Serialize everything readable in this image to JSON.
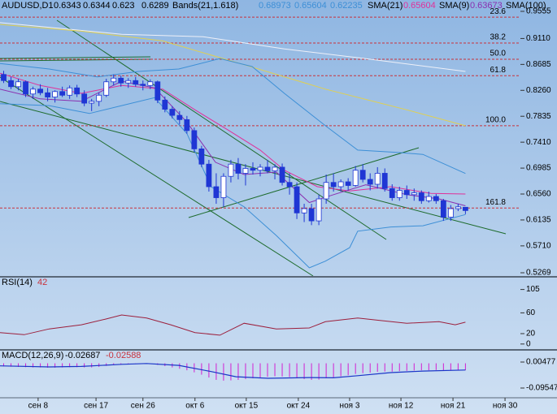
{
  "chart_data": [
    {
      "type": "candlestick",
      "title": "AUDUSD,D1",
      "x": [
        0.5,
        1.5,
        2.5,
        3.5,
        4.5,
        5.5,
        6.5,
        7.5,
        8.5,
        9.5,
        10.5,
        11.5,
        12.5,
        13.5,
        14.5,
        15.5,
        16.5,
        17.5,
        18.5,
        19.5,
        20.5,
        21.5,
        22.5,
        23.5,
        24.5,
        25.5,
        26.5,
        27.5,
        28.5,
        29.5,
        30.5,
        31.5,
        32.5,
        33.5,
        34.5,
        35.5,
        36.5,
        37.5,
        38.5,
        39.5,
        40.5,
        41.5,
        42.5,
        43.5,
        44.5,
        45.5,
        46.5,
        47.5,
        48.5,
        49.5,
        50.5,
        51.5,
        52.5,
        53.5,
        54.5,
        55.5,
        56.5,
        57.5,
        58.5,
        59.5,
        60.5,
        61.5,
        62.5,
        63.5
      ],
      "open": [
        0.852,
        0.842,
        0.832,
        0.84,
        0.82,
        0.828,
        0.822,
        0.815,
        0.824,
        0.818,
        0.83,
        0.82,
        0.805,
        0.808,
        0.818,
        0.84,
        0.846,
        0.838,
        0.842,
        0.836,
        0.834,
        0.84,
        0.81,
        0.795,
        0.785,
        0.778,
        0.76,
        0.73,
        0.705,
        0.668,
        0.65,
        0.685,
        0.705,
        0.69,
        0.698,
        0.695,
        0.7,
        0.694,
        0.7,
        0.675,
        0.668,
        0.625,
        0.632,
        0.612,
        0.648,
        0.675,
        0.668,
        0.676,
        0.67,
        0.695,
        0.68,
        0.672,
        0.69,
        0.665,
        0.65,
        0.662,
        0.655,
        0.658,
        0.645,
        0.652,
        0.645,
        0.618,
        0.632,
        0.6343
      ],
      "high": [
        0.858,
        0.848,
        0.845,
        0.842,
        0.832,
        0.836,
        0.83,
        0.826,
        0.832,
        0.834,
        0.835,
        0.826,
        0.812,
        0.822,
        0.845,
        0.852,
        0.85,
        0.846,
        0.848,
        0.842,
        0.844,
        0.842,
        0.816,
        0.8,
        0.792,
        0.784,
        0.765,
        0.735,
        0.712,
        0.69,
        0.69,
        0.712,
        0.715,
        0.705,
        0.708,
        0.705,
        0.712,
        0.705,
        0.706,
        0.69,
        0.675,
        0.64,
        0.64,
        0.655,
        0.688,
        0.69,
        0.68,
        0.682,
        0.702,
        0.705,
        0.69,
        0.7,
        0.698,
        0.672,
        0.668,
        0.67,
        0.665,
        0.662,
        0.66,
        0.656,
        0.648,
        0.638,
        0.64,
        0.6344
      ],
      "low": [
        0.838,
        0.828,
        0.826,
        0.815,
        0.812,
        0.818,
        0.808,
        0.806,
        0.815,
        0.812,
        0.815,
        0.8,
        0.792,
        0.8,
        0.815,
        0.834,
        0.832,
        0.83,
        0.832,
        0.826,
        0.828,
        0.805,
        0.79,
        0.78,
        0.77,
        0.755,
        0.725,
        0.7,
        0.66,
        0.64,
        0.635,
        0.675,
        0.68,
        0.67,
        0.688,
        0.685,
        0.69,
        0.68,
        0.67,
        0.655,
        0.615,
        0.61,
        0.605,
        0.605,
        0.64,
        0.66,
        0.66,
        0.662,
        0.668,
        0.675,
        0.662,
        0.665,
        0.66,
        0.645,
        0.645,
        0.648,
        0.645,
        0.64,
        0.642,
        0.64,
        0.612,
        0.612,
        0.628,
        0.623
      ],
      "close": [
        0.842,
        0.832,
        0.84,
        0.82,
        0.828,
        0.822,
        0.815,
        0.824,
        0.818,
        0.83,
        0.82,
        0.805,
        0.808,
        0.818,
        0.84,
        0.846,
        0.838,
        0.842,
        0.836,
        0.834,
        0.84,
        0.81,
        0.795,
        0.785,
        0.778,
        0.76,
        0.73,
        0.705,
        0.668,
        0.65,
        0.685,
        0.705,
        0.69,
        0.698,
        0.695,
        0.7,
        0.694,
        0.7,
        0.675,
        0.668,
        0.625,
        0.632,
        0.612,
        0.648,
        0.675,
        0.668,
        0.676,
        0.67,
        0.695,
        0.68,
        0.672,
        0.69,
        0.665,
        0.65,
        0.662,
        0.655,
        0.658,
        0.645,
        0.652,
        0.645,
        0.618,
        0.632,
        0.635,
        0.6289
      ],
      "up_color": "#ffffff",
      "down_color": "#1f36d4",
      "bands": {
        "name": "Bands(21,1.618)",
        "color": "#3d8fd6",
        "upper": {
          "x": [
            0,
            6.7,
            13.3,
            18.9,
            24.4,
            30,
            34.4,
            38.8,
            44.4,
            48.8,
            54.4,
            57.7,
            63.5
          ],
          "values": [
            0.87,
            0.861,
            0.848,
            0.857,
            0.861,
            0.878,
            0.865,
            0.821,
            0.768,
            0.728,
            0.724,
            0.721,
            0.68973
          ]
        },
        "lower": {
          "x": [
            0,
            6.7,
            12.2,
            16.6,
            21.1,
            25.5,
            28.8,
            33.3,
            37.7,
            42.2,
            44.4,
            47.7,
            48.8,
            53.3,
            57.7,
            63.5
          ],
          "values": [
            0.804,
            0.801,
            0.788,
            0.801,
            0.814,
            0.755,
            0.668,
            0.635,
            0.588,
            0.535,
            0.546,
            0.568,
            0.595,
            0.602,
            0.604,
            0.62235
          ]
        }
      },
      "series": [
        {
          "name": "SMA(21)",
          "color": "#e0309a",
          "x": [
            0,
            5.5,
            11.1,
            16.6,
            22.2,
            26.6,
            31.1,
            35.5,
            38.8,
            43.3,
            47.7,
            53.3,
            58.8,
            63.5
          ],
          "values": [
            0.854,
            0.834,
            0.821,
            0.834,
            0.828,
            0.794,
            0.761,
            0.728,
            0.695,
            0.668,
            0.661,
            0.668,
            0.657,
            0.65604
          ]
        },
        {
          "name": "SMA(9)",
          "color": "#8a2fb0",
          "x": [
            0,
            5.5,
            11.1,
            16.6,
            21.1,
            25.5,
            29.4,
            33.3,
            37.7,
            42.2,
            45.5,
            49.9,
            55.5,
            59.9,
            63.5
          ],
          "values": [
            0.828,
            0.812,
            0.808,
            0.841,
            0.83,
            0.774,
            0.708,
            0.688,
            0.692,
            0.642,
            0.655,
            0.671,
            0.655,
            0.648,
            0.63673
          ]
        },
        {
          "name": "SMA(100)",
          "color": "#eef0f8",
          "x": [
            0,
            16.6,
            27.7,
            38.8,
            49.9,
            63.5
          ],
          "values": [
            0.937,
            0.918,
            0.914,
            0.894,
            0.878,
            0.857
          ]
        },
        {
          "color": "#e0d050",
          "x": [
            0,
            11.1,
            22.2,
            33.3,
            44.4,
            55.5,
            63.5
          ],
          "values": [
            0.934,
            0.923,
            0.907,
            0.868,
            0.828,
            0.794,
            0.768
          ]
        }
      ],
      "fib_levels": [
        {
          "label": "23.6",
          "value": 0.946
        },
        {
          "label": "38.2",
          "value": 0.9035
        },
        {
          "label": "50.0",
          "value": 0.877
        },
        {
          "label": "61.8",
          "value": 0.85
        },
        {
          "label": "100.0",
          "value": 0.768
        },
        {
          "label": "161.8",
          "value": 0.633
        }
      ],
      "fib_color": "#c8323c",
      "xlim": [
        0,
        71
      ],
      "xticks": [
        {
          "value": 5.2,
          "label": "сен 8"
        },
        {
          "value": 13.1,
          "label": "сен 17"
        },
        {
          "value": 19.5,
          "label": "сен 26"
        },
        {
          "value": 26.6,
          "label": "окт 6"
        },
        {
          "value": 33.6,
          "label": "окт 15"
        },
        {
          "value": 40.7,
          "label": "окт 24"
        },
        {
          "value": 47.7,
          "label": "ноя 3"
        },
        {
          "value": 54.7,
          "label": "ноя 12"
        },
        {
          "value": 61.8,
          "label": "ноя 21"
        },
        {
          "value": 68.9,
          "label": "ноя 30"
        }
      ],
      "ylim": [
        0.5216,
        0.9741
      ],
      "yticks": [
        0.9555,
        {
          "value": 0.911,
          "label": "0.9110"
        },
        0.8685,
        {
          "value": 0.826,
          "label": "0.8260"
        },
        0.7835,
        {
          "value": 0.741,
          "label": "0.7410"
        },
        0.6985,
        {
          "value": 0.656,
          "label": "0.6560"
        },
        0.6135,
        {
          "value": 0.571,
          "label": "0.5710"
        },
        0.5269
      ]
    },
    {
      "type": "line",
      "title": "RSI(14)",
      "color": "#9c1f3c",
      "x": [
        0,
        3.3,
        6.7,
        11.1,
        14.4,
        16.6,
        20,
        23.3,
        26.6,
        30,
        33.3,
        37.7,
        42.2,
        44.4,
        48.8,
        52.1,
        55.5,
        59.9,
        62.1,
        63.5
      ],
      "values": [
        22,
        18,
        29,
        37,
        48,
        56,
        50,
        37,
        22,
        17,
        40,
        29,
        31,
        43,
        50,
        45,
        40,
        43,
        37,
        42
      ],
      "ylim": [
        -5,
        120
      ],
      "yticks": [
        105,
        60,
        20,
        0
      ]
    },
    {
      "type": "bar",
      "title": "MACD(12,26,9)",
      "color": "#d21fd2",
      "values": [
        -0.012,
        -0.013,
        -0.014,
        -0.015,
        -0.016,
        -0.016,
        -0.017,
        -0.017,
        -0.016,
        -0.015,
        -0.015,
        -0.016,
        -0.016,
        -0.014,
        -0.01,
        -0.006,
        -0.004,
        -0.002,
        -0.001,
        -0.002,
        -0.002,
        -0.006,
        -0.011,
        -0.016,
        -0.021,
        -0.027,
        -0.035,
        -0.044,
        -0.055,
        -0.064,
        -0.067,
        -0.066,
        -0.064,
        -0.061,
        -0.058,
        -0.055,
        -0.052,
        -0.05,
        -0.051,
        -0.053,
        -0.058,
        -0.061,
        -0.064,
        -0.063,
        -0.058,
        -0.054,
        -0.05,
        -0.046,
        -0.041,
        -0.038,
        -0.036,
        -0.033,
        -0.032,
        -0.032,
        -0.03,
        -0.029,
        -0.028,
        -0.027,
        -0.027,
        -0.026,
        -0.027,
        -0.027,
        -0.027,
        -0.02687
      ],
      "signal": {
        "color": "#1a35c8",
        "x": [
          0,
          6.7,
          11.1,
          16.6,
          20,
          24.4,
          28.8,
          32.2,
          36.6,
          42.2,
          45.5,
          48.8,
          53.3,
          57.7,
          63.5
        ],
        "values": [
          -0.01,
          -0.014,
          -0.012,
          -0.004,
          -0.001,
          -0.008,
          -0.032,
          -0.052,
          -0.058,
          -0.055,
          -0.056,
          -0.048,
          -0.036,
          -0.03,
          -0.02588
        ]
      },
      "ylim": [
        -0.1331,
        0.0455
      ],
      "yticks": [
        0.00477,
        -0.09547
      ]
    }
  ]
}
